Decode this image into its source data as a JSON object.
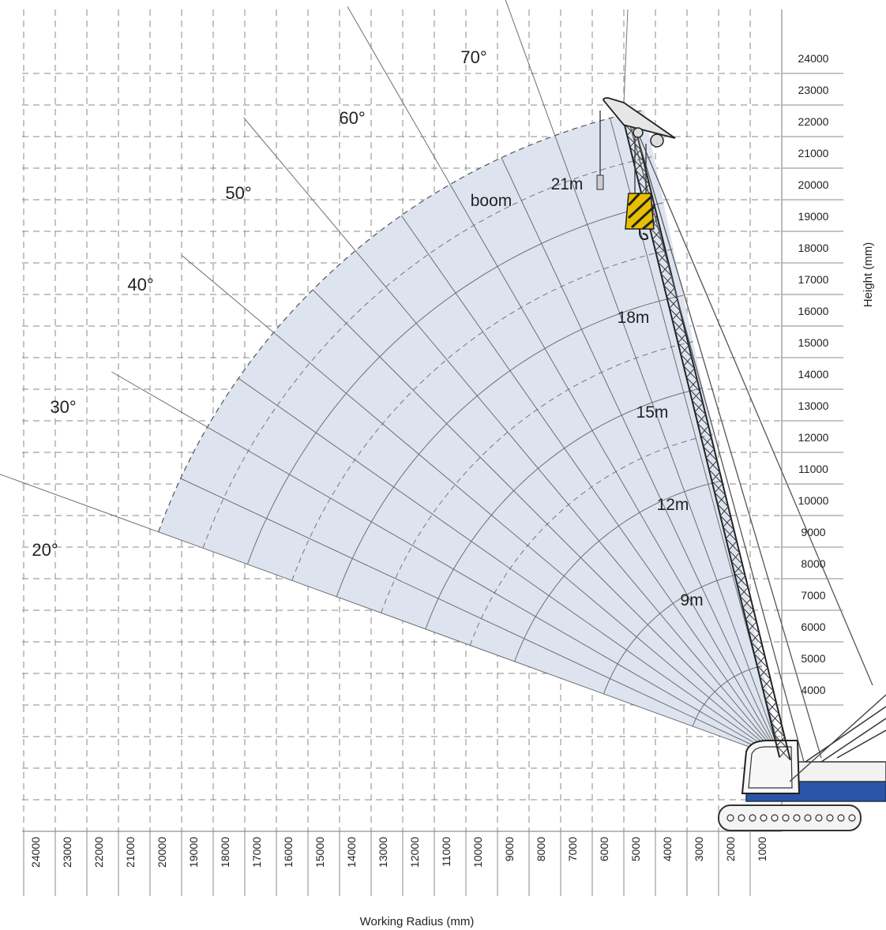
{
  "chart_data": {
    "type": "diagram",
    "xlabel": "Working Radius (mm)",
    "ylabel": "Height (mm)",
    "x_ticks": [
      24000,
      23000,
      22000,
      21000,
      20000,
      19000,
      18000,
      17000,
      16000,
      15000,
      14000,
      13000,
      12000,
      11000,
      10000,
      9000,
      8000,
      7000,
      6000,
      5000,
      4000,
      3000,
      2000,
      1000
    ],
    "y_ticks": [
      24000,
      23000,
      22000,
      21000,
      20000,
      19000,
      18000,
      17000,
      16000,
      15000,
      14000,
      13000,
      12000,
      11000,
      10000,
      9000,
      8000,
      7000,
      6000,
      5000,
      4000
    ],
    "xlim": [
      0,
      24000
    ],
    "ylim": [
      0,
      24500
    ],
    "pivot": {
      "radius": 0,
      "height": 2300
    },
    "boom_label": "boom",
    "boom_angles": [
      {
        "label": "20°",
        "value": 20
      },
      {
        "label": "30°",
        "value": 30
      },
      {
        "label": "40°",
        "value": 40
      },
      {
        "label": "50°",
        "value": 50
      },
      {
        "label": "60°",
        "value": 60
      },
      {
        "label": "70°",
        "value": 70
      }
    ],
    "boom_lengths": [
      {
        "label": "9m",
        "value": 9
      },
      {
        "label": "12m",
        "value": 12
      },
      {
        "label": "15m",
        "value": 15
      },
      {
        "label": "18m",
        "value": 18
      },
      {
        "label": "21m",
        "value": 21
      }
    ],
    "boom_length_arcs_dashed": [
      10.5,
      13.5,
      16.5,
      19.5
    ],
    "angle_range": [
      20,
      78
    ],
    "colors": {
      "envelope": "#dde4f0",
      "crane_body": "#2a55a8",
      "grid": "#8a8a8a",
      "hook": "#e8c000"
    }
  }
}
